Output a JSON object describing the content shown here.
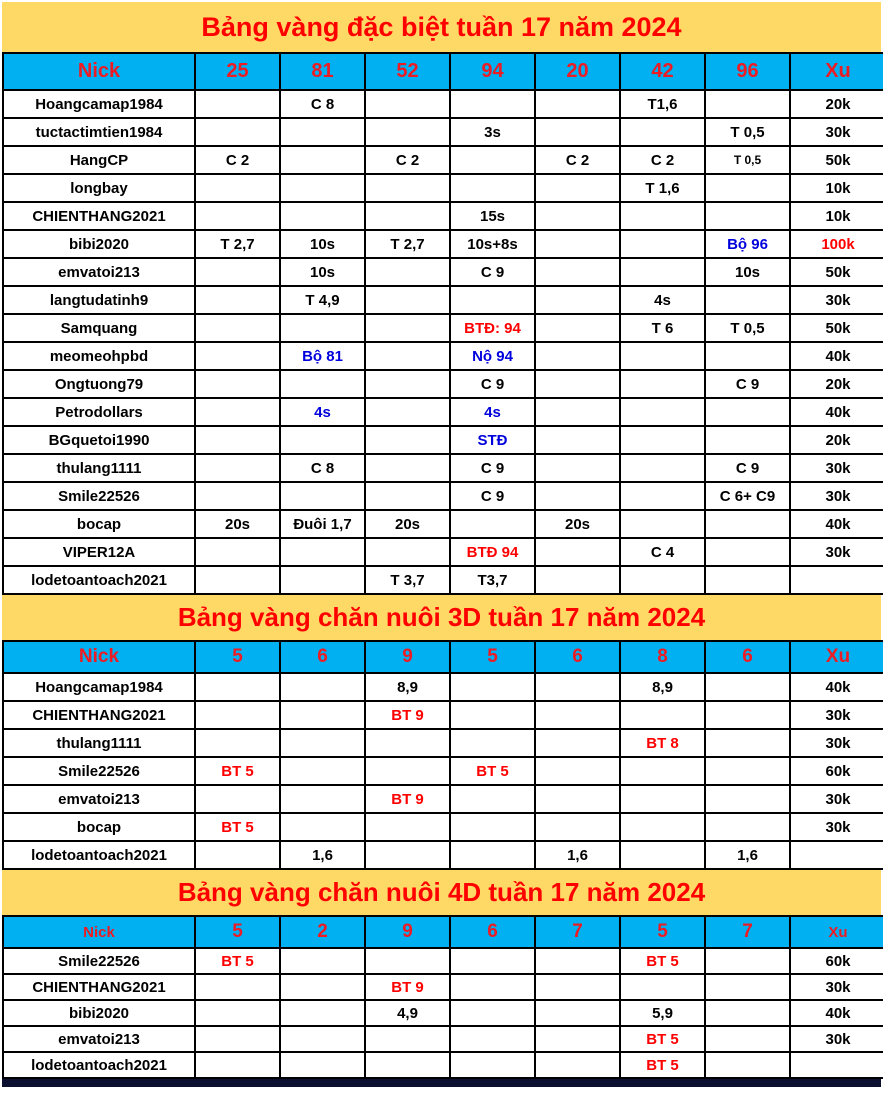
{
  "colors": {
    "title_bg": "#FFD966",
    "title_text": "#FF0000",
    "header_bg": "#00B0F0",
    "header_text": "#ED1C24",
    "cell_text": "#000000",
    "highlight_red": "#FF0000",
    "highlight_blue": "#0000DD",
    "bottom_bar": "#0B1030"
  },
  "tables": [
    {
      "title": "Bảng vàng đặc biệt tuần 17 năm 2024",
      "headers": [
        "Nick",
        "25",
        "81",
        "52",
        "94",
        "20",
        "42",
        "96",
        "Xu"
      ],
      "rows": [
        {
          "nick": "Hoangcamap1984",
          "cells": [
            "",
            "C 8",
            "",
            "",
            "",
            "T1,6",
            ""
          ],
          "xu": "20k"
        },
        {
          "nick": "tuctactimtien1984",
          "cells": [
            "",
            "",
            "",
            "3s",
            "",
            "",
            "T 0,5"
          ],
          "xu": "30k"
        },
        {
          "nick": "HangCP",
          "cells": [
            "C 2",
            "",
            "C 2",
            "",
            "C 2",
            "C 2",
            {
              "t": "T 0,5",
              "s": "small"
            }
          ],
          "xu": "50k"
        },
        {
          "nick": "longbay",
          "cells": [
            "",
            "",
            "",
            "",
            "",
            "T 1,6",
            ""
          ],
          "xu": "10k"
        },
        {
          "nick": "CHIENTHANG2021",
          "cells": [
            "",
            "",
            "",
            "15s",
            "",
            "",
            ""
          ],
          "xu": "10k"
        },
        {
          "nick": "bibi2020",
          "cells": [
            "T 2,7",
            "10s",
            "T 2,7",
            "10s+8s",
            "",
            "",
            {
              "t": "Bộ 96",
              "c": "blue"
            }
          ],
          "xu": {
            "t": "100k",
            "c": "red"
          }
        },
        {
          "nick": "emvatoi213",
          "cells": [
            "",
            "10s",
            "",
            "C 9",
            "",
            "",
            "10s"
          ],
          "xu": "50k"
        },
        {
          "nick": "langtudatinh9",
          "cells": [
            "",
            "T 4,9",
            "",
            "",
            "",
            "4s",
            ""
          ],
          "xu": "30k"
        },
        {
          "nick": "Samquang",
          "cells": [
            "",
            "",
            "",
            {
              "t": "BTĐ: 94",
              "c": "red"
            },
            "",
            "T 6",
            "T 0,5"
          ],
          "xu": "50k"
        },
        {
          "nick": "meomeohpbd",
          "cells": [
            "",
            {
              "t": "Bộ 81",
              "c": "blue"
            },
            "",
            {
              "t": "Nộ 94",
              "c": "blue"
            },
            "",
            "",
            ""
          ],
          "xu": "40k"
        },
        {
          "nick": "Ongtuong79",
          "cells": [
            "",
            "",
            "",
            "C 9",
            "",
            "",
            "C 9"
          ],
          "xu": "20k"
        },
        {
          "nick": "Petrodollars",
          "cells": [
            "",
            {
              "t": "4s",
              "c": "blue"
            },
            "",
            {
              "t": "4s",
              "c": "blue"
            },
            "",
            "",
            ""
          ],
          "xu": "40k"
        },
        {
          "nick": "BGquetoi1990",
          "cells": [
            "",
            "",
            "",
            {
              "t": "STĐ",
              "c": "blue"
            },
            "",
            "",
            ""
          ],
          "xu": "20k"
        },
        {
          "nick": "thulang1111",
          "cells": [
            "",
            "C 8",
            "",
            "C 9",
            "",
            "",
            "C 9"
          ],
          "xu": "30k"
        },
        {
          "nick": "Smile22526",
          "cells": [
            "",
            "",
            "",
            "C 9",
            "",
            "",
            "C 6+ C9"
          ],
          "xu": "30k"
        },
        {
          "nick": "bocap",
          "cells": [
            "20s",
            "Đuôi 1,7",
            "20s",
            "",
            "20s",
            "",
            ""
          ],
          "xu": "40k"
        },
        {
          "nick": "VIPER12A",
          "cells": [
            "",
            "",
            "",
            {
              "t": "BTĐ 94",
              "c": "red"
            },
            "",
            "C 4",
            ""
          ],
          "xu": "30k"
        },
        {
          "nick": "lodetoantoach2021",
          "cells": [
            "",
            "",
            "T 3,7",
            "T3,7",
            "",
            "",
            ""
          ],
          "xu": ""
        }
      ]
    },
    {
      "title": "Bảng vàng chăn nuôi 3D tuần 17 năm 2024",
      "headers": [
        "Nick",
        "5",
        "6",
        "9",
        "5",
        "6",
        "8",
        "6",
        "Xu"
      ],
      "rows": [
        {
          "nick": "Hoangcamap1984",
          "cells": [
            "",
            "",
            "8,9",
            "",
            "",
            "8,9",
            ""
          ],
          "xu": "40k"
        },
        {
          "nick": "CHIENTHANG2021",
          "cells": [
            "",
            "",
            {
              "t": "BT 9",
              "c": "red"
            },
            "",
            "",
            "",
            ""
          ],
          "xu": "30k"
        },
        {
          "nick": "thulang1111",
          "cells": [
            "",
            "",
            "",
            "",
            "",
            {
              "t": "BT 8",
              "c": "red"
            },
            ""
          ],
          "xu": "30k"
        },
        {
          "nick": "Smile22526",
          "cells": [
            {
              "t": "BT 5",
              "c": "red"
            },
            "",
            "",
            {
              "t": "BT 5",
              "c": "red"
            },
            "",
            "",
            ""
          ],
          "xu": "60k"
        },
        {
          "nick": "emvatoi213",
          "cells": [
            "",
            "",
            {
              "t": "BT 9",
              "c": "red"
            },
            "",
            "",
            "",
            ""
          ],
          "xu": "30k"
        },
        {
          "nick": "bocap",
          "cells": [
            {
              "t": "BT 5",
              "c": "red"
            },
            "",
            "",
            "",
            "",
            "",
            ""
          ],
          "xu": "30k"
        },
        {
          "nick": "lodetoantoach2021",
          "cells": [
            "",
            "1,6",
            "",
            "",
            "1,6",
            "",
            "1,6"
          ],
          "xu": ""
        }
      ]
    },
    {
      "title": "Bảng vàng chăn nuôi 4D tuần 17 năm 2024",
      "headers": [
        "Nick",
        "5",
        "2",
        "9",
        "6",
        "7",
        "5",
        "7",
        "Xu"
      ],
      "rows": [
        {
          "nick": "Smile22526",
          "cells": [
            {
              "t": "BT 5",
              "c": "red"
            },
            "",
            "",
            "",
            "",
            {
              "t": "BT 5",
              "c": "red"
            },
            ""
          ],
          "xu": "60k"
        },
        {
          "nick": "CHIENTHANG2021",
          "cells": [
            "",
            "",
            {
              "t": "BT 9",
              "c": "red"
            },
            "",
            "",
            "",
            ""
          ],
          "xu": "30k"
        },
        {
          "nick": "bibi2020",
          "cells": [
            "",
            "",
            "4,9",
            "",
            "",
            "5,9",
            ""
          ],
          "xu": "40k"
        },
        {
          "nick": "emvatoi213",
          "cells": [
            "",
            "",
            "",
            "",
            "",
            {
              "t": "BT 5",
              "c": "red"
            },
            ""
          ],
          "xu": "30k"
        },
        {
          "nick": "lodetoantoach2021",
          "cells": [
            "",
            "",
            "",
            "",
            "",
            {
              "t": "BT 5",
              "c": "red"
            },
            ""
          ],
          "xu": ""
        }
      ]
    }
  ]
}
